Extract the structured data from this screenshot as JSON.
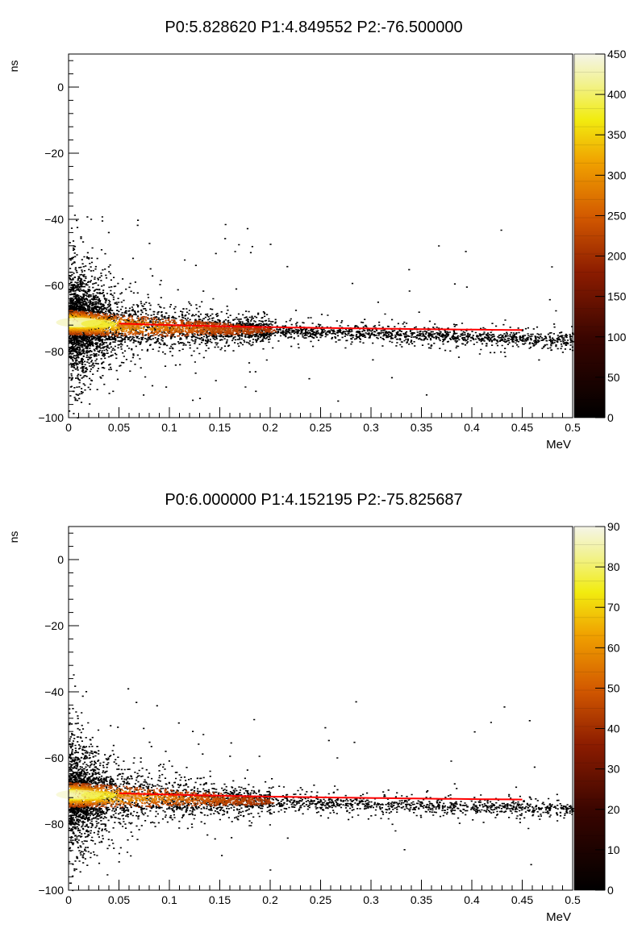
{
  "chart_data": [
    {
      "type": "heatmap",
      "title": "P0:5.828620 P1:4.849552 P2:-76.500000",
      "xlabel": "MeV",
      "ylabel": "ns",
      "xlim": [
        0,
        0.5
      ],
      "ylim": [
        -100,
        10
      ],
      "x_ticks": [
        "0",
        "0.05",
        "0.1",
        "0.15",
        "0.2",
        "0.25",
        "0.3",
        "0.35",
        "0.4",
        "0.45",
        "0.5"
      ],
      "y_ticks": [
        "-100",
        "-80",
        "-60",
        "-40",
        "-20",
        "0"
      ],
      "z_range": [
        0,
        450
      ],
      "z_ticks": [
        "0",
        "50",
        "100",
        "150",
        "200",
        "250",
        "300",
        "350",
        "400",
        "450"
      ],
      "fit_params": {
        "P0": 5.82862,
        "P1": 4.849552,
        "P2": -76.5
      },
      "fit_xrange": [
        0.05,
        0.45
      ],
      "fit_color": "#ff0000",
      "band": {
        "x": [
          0,
          0.05,
          0.1,
          0.15,
          0.2,
          0.25,
          0.3,
          0.35,
          0.4,
          0.45,
          0.5
        ],
        "y_center": [
          -71,
          -72,
          -72.5,
          -73,
          -73.5,
          -74,
          -74.5,
          -75,
          -75.5,
          -76,
          -76.5
        ]
      }
    },
    {
      "type": "heatmap",
      "title": "P0:6.000000 P1:4.152195 P2:-75.825687",
      "xlabel": "MeV",
      "ylabel": "ns",
      "xlim": [
        0,
        0.5
      ],
      "ylim": [
        -100,
        10
      ],
      "x_ticks": [
        "0",
        "0.05",
        "0.1",
        "0.15",
        "0.2",
        "0.25",
        "0.3",
        "0.35",
        "0.4",
        "0.45",
        "0.5"
      ],
      "y_ticks": [
        "-100",
        "-80",
        "-60",
        "-40",
        "-20",
        "0"
      ],
      "z_range": [
        0,
        90
      ],
      "z_ticks": [
        "0",
        "10",
        "20",
        "30",
        "40",
        "50",
        "60",
        "70",
        "80",
        "90"
      ],
      "fit_params": {
        "P0": 6.0,
        "P1": 4.152195,
        "P2": -75.825687
      },
      "fit_xrange": [
        0.05,
        0.45
      ],
      "fit_color": "#ff0000",
      "band": {
        "x": [
          0,
          0.05,
          0.1,
          0.15,
          0.2,
          0.25,
          0.3,
          0.35,
          0.4,
          0.45,
          0.5
        ],
        "y_center": [
          -71,
          -71.5,
          -72,
          -72.5,
          -73,
          -73.5,
          -74,
          -74.3,
          -74.6,
          -75,
          -75.5
        ]
      }
    }
  ]
}
